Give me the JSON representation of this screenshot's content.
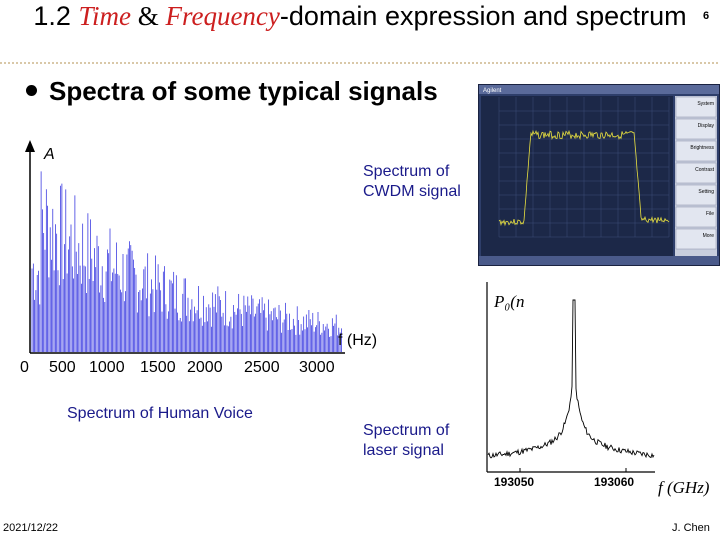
{
  "slide": {
    "title_prefix": "1.2 ",
    "title_time": "Time",
    "title_amp": " & ",
    "title_freq": "Frequency",
    "title_rest": "-domain expression and spectrum",
    "page_number": "6",
    "bullet": "Spectra of some typical signals",
    "date": "2021/12/22",
    "author": "J. Chen"
  },
  "voice_chart": {
    "y_label": "A",
    "x_label": "f (Hz)",
    "ticks": [
      "0",
      "500",
      "1000",
      "1500",
      "2000",
      "2500",
      "3000"
    ],
    "caption": "Spectrum of Human Voice"
  },
  "cwdm": {
    "caption": "Spectrum of CWDM signal",
    "brand": "Agilent",
    "menu": [
      "System",
      "Display",
      "Brightness",
      "Contrast",
      "Setting",
      "File",
      "More"
    ]
  },
  "laser": {
    "caption": "Spectrum of laser signal",
    "y_label": "P₀(n",
    "x_label": "f (GHz)",
    "ticks": [
      "193050",
      "193060"
    ]
  },
  "colors": {
    "accent_red": "#cc1f1f",
    "voice_blue": "#2222dd",
    "caption_blue": "#1a1a8a"
  },
  "chart_data": [
    {
      "type": "line",
      "title": "",
      "xlabel": "f (Hz)",
      "ylabel": "A",
      "xlim": [
        0,
        3000
      ],
      "series": [
        {
          "values": []
        }
      ]
    },
    {
      "type": "line",
      "title": "",
      "xlabel": "f (GHz)",
      "ylabel": "P₀(n",
      "x_ticks": [
        193050,
        193060
      ]
    }
  ]
}
